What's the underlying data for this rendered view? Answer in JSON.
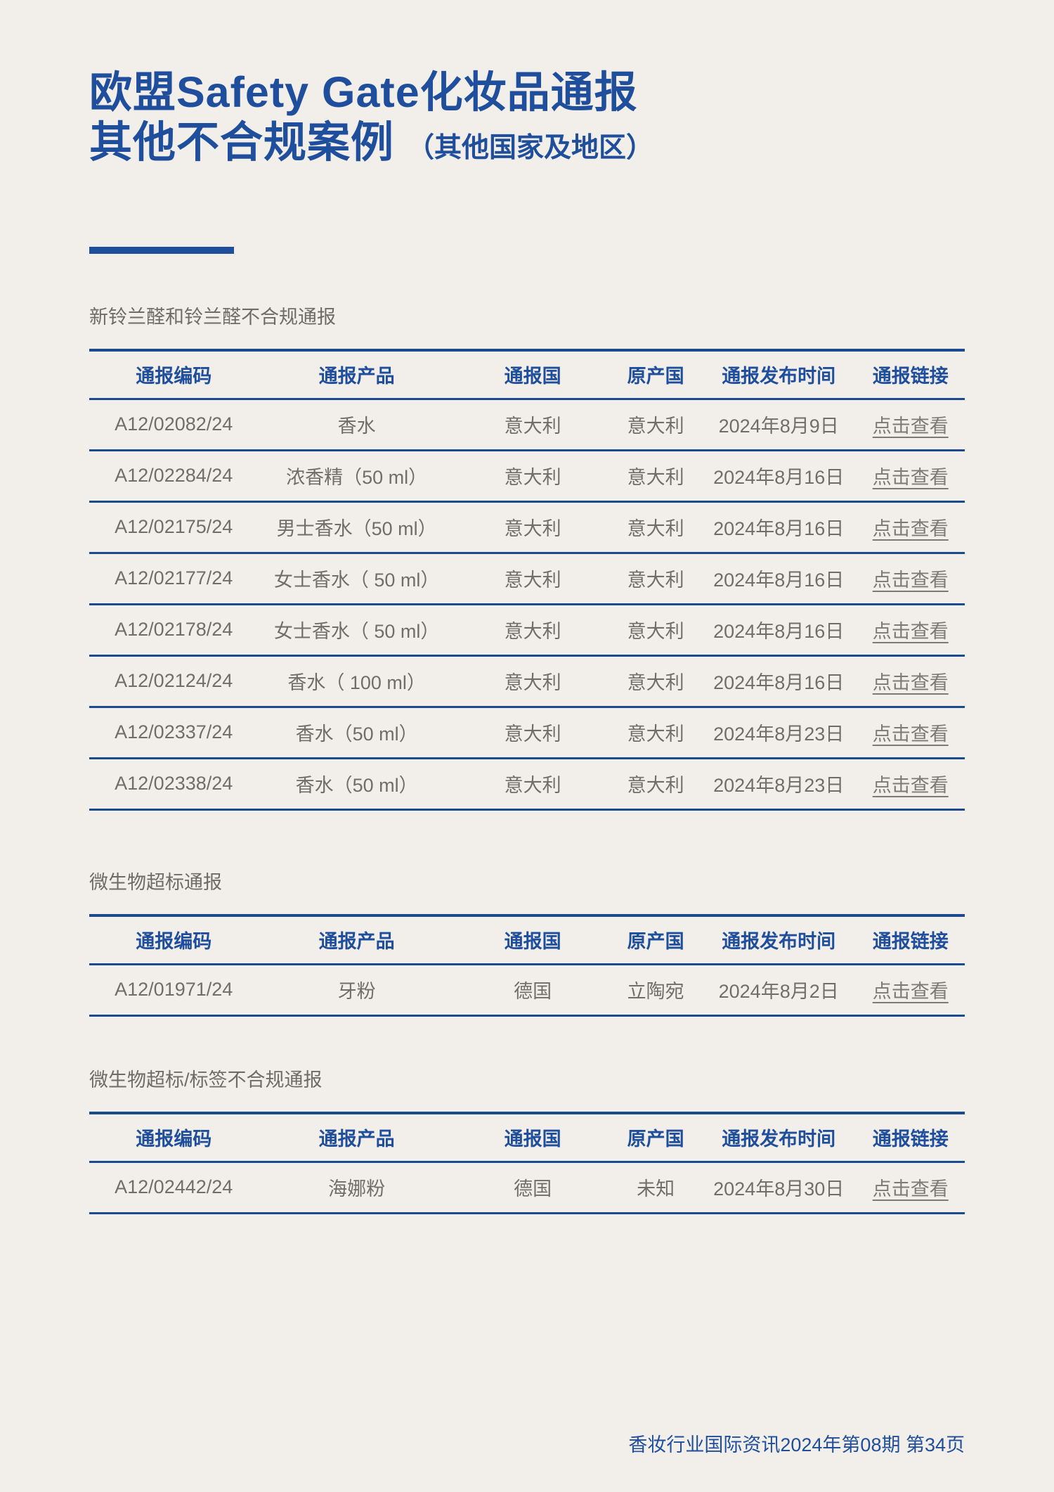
{
  "page": {
    "background_color": "#f2efea",
    "accent_color": "#1f4e9c",
    "border_color": "#1c4a8e"
  },
  "header": {
    "title_line1": "欧盟Safety Gate化妆品通报",
    "title_line2": "其他不合规案例",
    "title_suffix": "（其他国家及地区）"
  },
  "table_columns": [
    "通报编码",
    "通报产品",
    "通报国",
    "原产国",
    "通报发布时间",
    "通报链接"
  ],
  "link_label": "点击查看",
  "sections": [
    {
      "label": "新铃兰醛和铃兰醛不合规通报",
      "rows": [
        {
          "code": "A12/02082/24",
          "product": "香水",
          "country": "意大利",
          "origin": "意大利",
          "date": "2024年8月9日"
        },
        {
          "code": "A12/02284/24",
          "product": "浓香精（50 ml）",
          "country": "意大利",
          "origin": "意大利",
          "date": "2024年8月16日"
        },
        {
          "code": "A12/02175/24",
          "product": "男士香水（50 ml）",
          "country": "意大利",
          "origin": "意大利",
          "date": "2024年8月16日"
        },
        {
          "code": "A12/02177/24",
          "product": "女士香水（ 50 ml）",
          "country": "意大利",
          "origin": "意大利",
          "date": "2024年8月16日"
        },
        {
          "code": "A12/02178/24",
          "product": "女士香水（ 50 ml）",
          "country": "意大利",
          "origin": "意大利",
          "date": "2024年8月16日"
        },
        {
          "code": "A12/02124/24",
          "product": "香水（ 100 ml）",
          "country": "意大利",
          "origin": "意大利",
          "date": "2024年8月16日"
        },
        {
          "code": "A12/02337/24",
          "product": "香水（50 ml）",
          "country": "意大利",
          "origin": "意大利",
          "date": "2024年8月23日"
        },
        {
          "code": "A12/02338/24",
          "product": "香水（50 ml）",
          "country": "意大利",
          "origin": "意大利",
          "date": "2024年8月23日"
        }
      ]
    },
    {
      "label": "微生物超标通报",
      "rows": [
        {
          "code": "A12/01971/24",
          "product": "牙粉",
          "country": "德国",
          "origin": "立陶宛",
          "date": "2024年8月2日"
        }
      ]
    },
    {
      "label": "微生物超标/标签不合规通报",
      "rows": [
        {
          "code": "A12/02442/24",
          "product": "海娜粉",
          "country": "德国",
          "origin": "未知",
          "date": "2024年8月30日"
        }
      ]
    }
  ],
  "footer": {
    "text": "香妆行业国际资讯2024年第08期 第34页"
  }
}
